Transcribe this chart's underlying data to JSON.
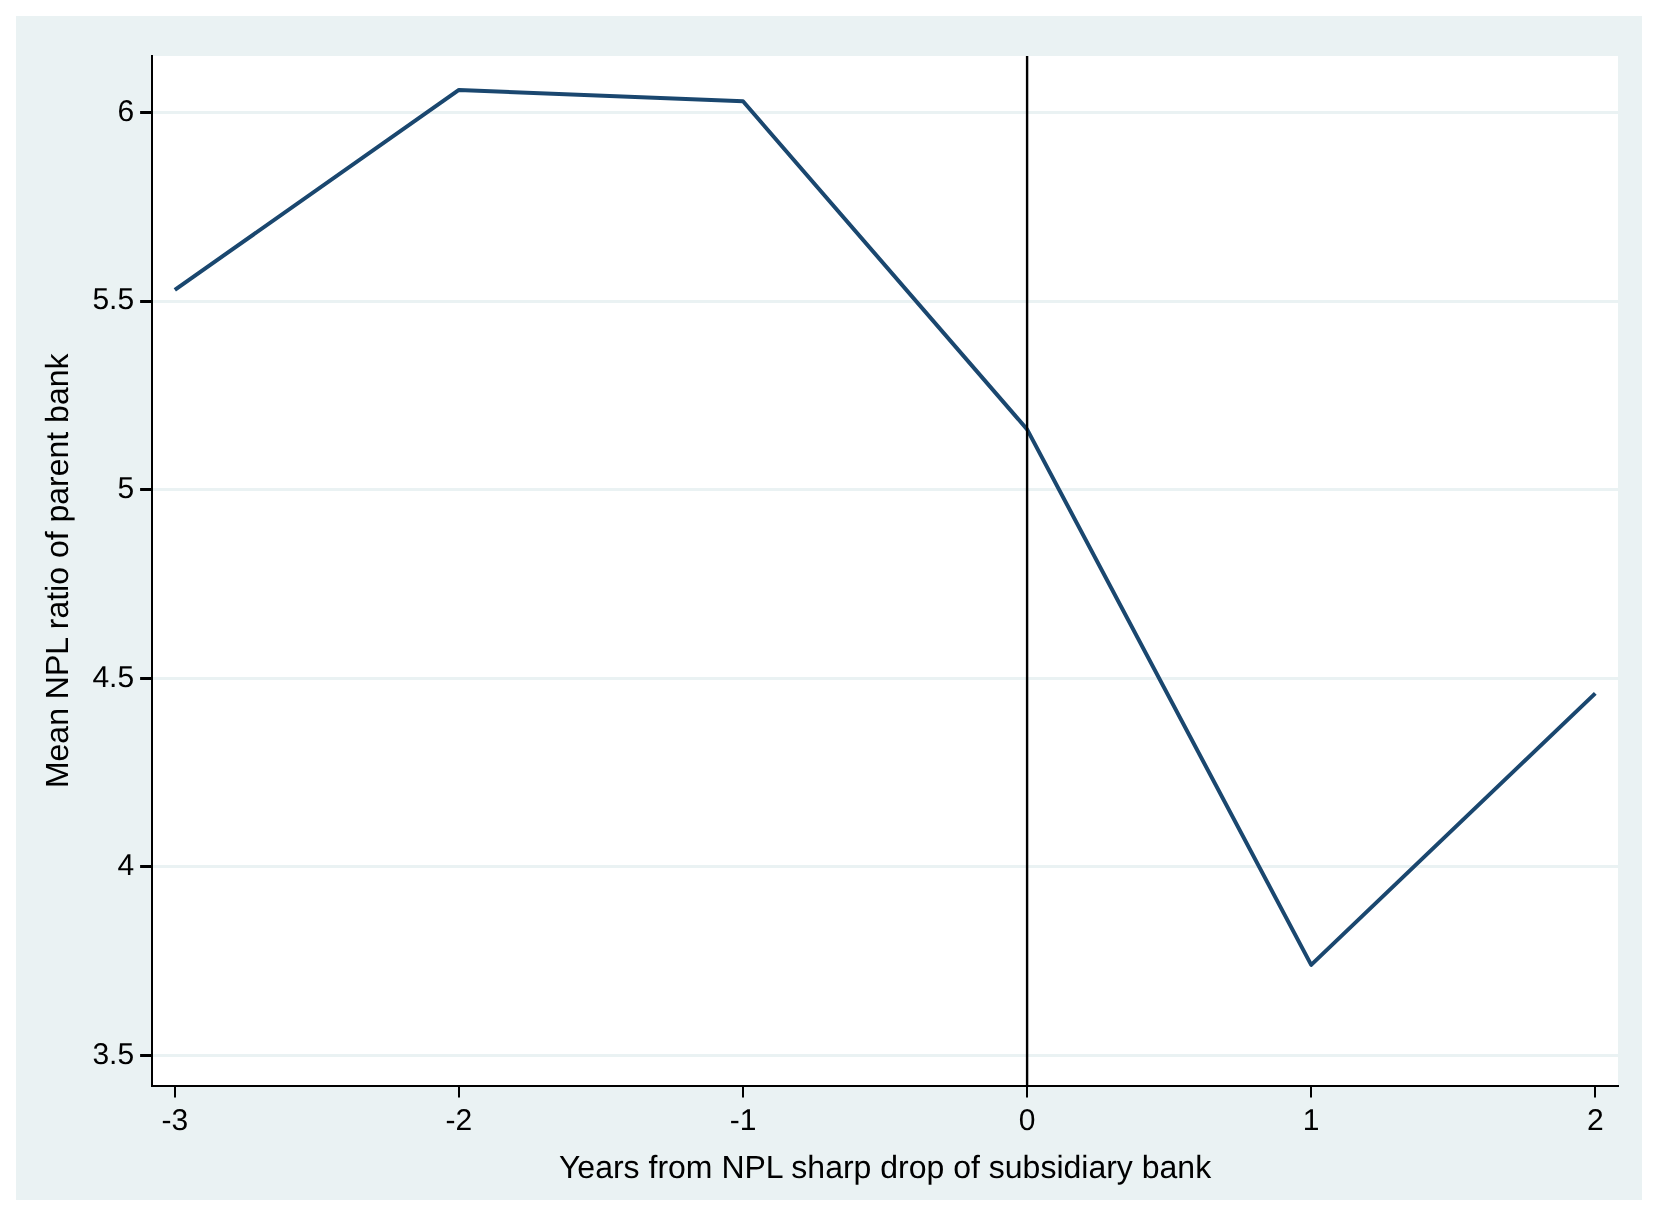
{
  "chart_data": {
    "type": "line",
    "xlabel": "Years from NPL sharp drop of subsidiary bank",
    "ylabel": "Mean NPL ratio of parent bank",
    "x": [
      -3,
      -2,
      -1,
      0,
      1,
      2
    ],
    "series": [
      {
        "color": "#1a476f",
        "values": [
          5.53,
          6.06,
          6.03,
          5.16,
          3.74,
          4.46
        ]
      }
    ],
    "xlim": [
      -3.08,
      2.08
    ],
    "xticks": [
      -3,
      -2,
      -1,
      0,
      1,
      2
    ],
    "ylim": [
      3.42,
      6.15
    ],
    "yticks": [
      3.5,
      4,
      4.5,
      5,
      5.5,
      6
    ],
    "grid": "y",
    "legend": false,
    "marker": "none",
    "line_style": "solid",
    "ref_lines": [
      {
        "axis": "x",
        "value": 0,
        "color": "#000000"
      }
    ]
  }
}
